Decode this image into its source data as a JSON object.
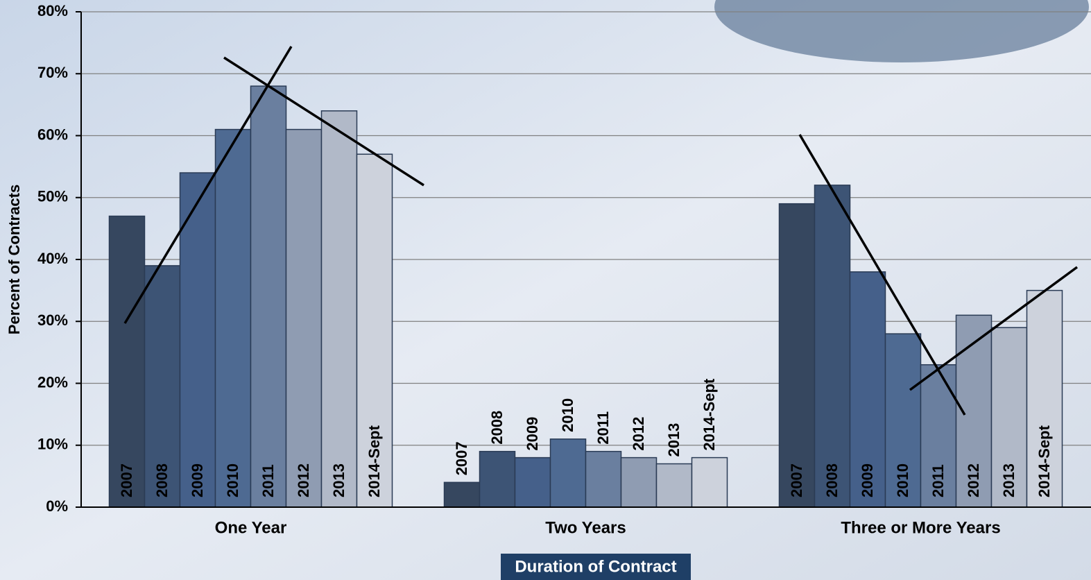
{
  "chart_data": {
    "type": "bar",
    "x_label": "Duration of Contract",
    "y_label": "Percent of Contracts",
    "categories": [
      "One Year",
      "Two Years",
      "Three or More Years"
    ],
    "series": [
      {
        "name": "2007",
        "color": "#36475f",
        "values": [
          47,
          4,
          49
        ]
      },
      {
        "name": "2008",
        "color": "#3d5475",
        "values": [
          39,
          9,
          52
        ]
      },
      {
        "name": "2009",
        "color": "#45608a",
        "values": [
          54,
          8,
          38
        ]
      },
      {
        "name": "2010",
        "color": "#4e6a92",
        "values": [
          61,
          11,
          28
        ]
      },
      {
        "name": "2011",
        "color": "#6a7f9f",
        "values": [
          68,
          9,
          23
        ]
      },
      {
        "name": "2012",
        "color": "#8f9cb2",
        "values": [
          61,
          8,
          31
        ]
      },
      {
        "name": "2013",
        "color": "#b1b9c8",
        "values": [
          64,
          7,
          29
        ]
      },
      {
        "name": "2014-Sept",
        "color": "#cdd2dc",
        "values": [
          57,
          8,
          35
        ]
      }
    ],
    "ylim": [
      0,
      80
    ],
    "yticks": [
      {
        "value": 0,
        "label": "0%"
      },
      {
        "value": 10,
        "label": "10%"
      },
      {
        "value": 20,
        "label": "20%"
      },
      {
        "value": 30,
        "label": "30%"
      },
      {
        "value": 40,
        "label": "40%"
      },
      {
        "value": 50,
        "label": "50%"
      },
      {
        "value": 60,
        "label": "60%"
      },
      {
        "value": 70,
        "label": "70%"
      },
      {
        "value": 80,
        "label": "80%"
      }
    ],
    "grid": true
  }
}
